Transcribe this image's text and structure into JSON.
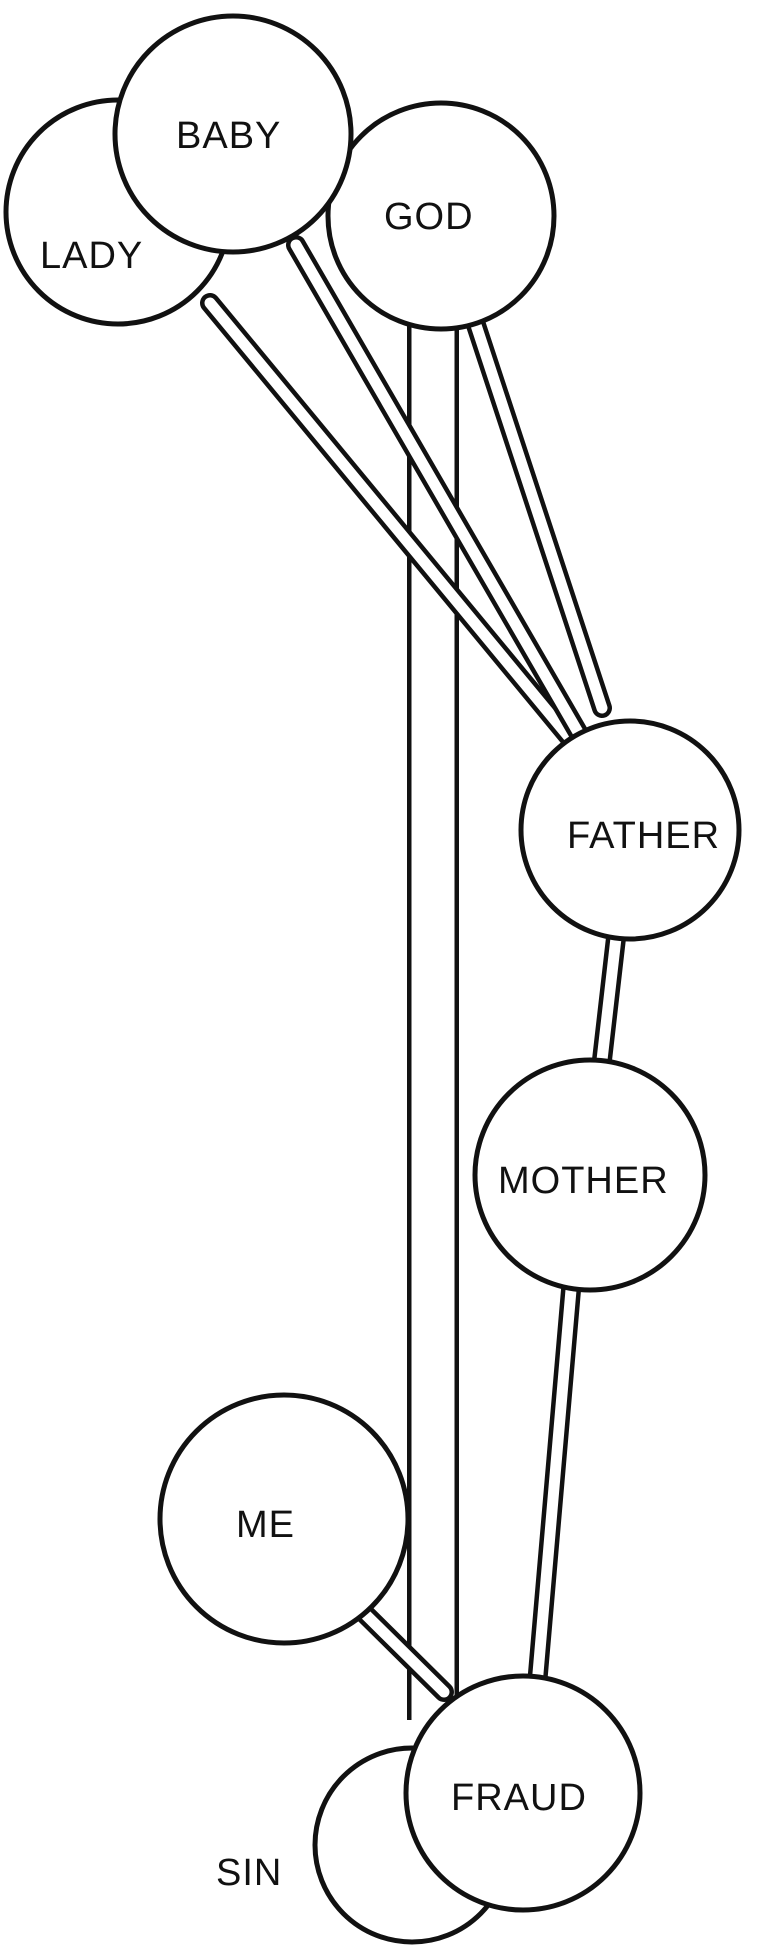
{
  "diagram": {
    "labels": {
      "lady": "LADY",
      "baby": "BABY",
      "god": "GOD",
      "father": "FATHER",
      "mother": "MOTHER",
      "me": "ME",
      "fraud": "FRAUD",
      "sin": "SIN"
    }
  },
  "colors": {
    "stroke": "#111111",
    "background": "#ffffff"
  }
}
